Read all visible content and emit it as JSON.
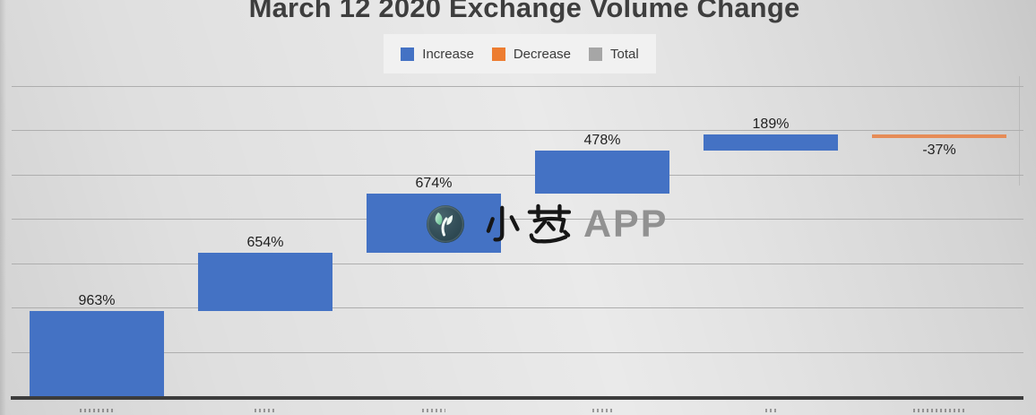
{
  "header": {
    "title": "March 12 2020 Exchange Volume Change"
  },
  "colors": {
    "background": "#dfdfdf",
    "legend_box": "#f1f1f1",
    "gridline": "#aeaeae",
    "axis_line": "#3c3c3c",
    "title_text": "#3e3e3e",
    "data_label_text": "#1f1f1f",
    "increase_blue": "#4472C4",
    "decrease_orange": "#ED7D31",
    "total_gray": "#A6A6A6"
  },
  "watermark": {
    "logo": "sprout-icon",
    "text_cn": "小葱",
    "text_en": "APP"
  },
  "chart_data": {
    "type": "bar",
    "subtype": "waterfall",
    "title": "March 12 2020 Exchange Volume Change",
    "legend_position": "top-center",
    "legend": [
      {
        "label": "Increase",
        "color": "#4472C4"
      },
      {
        "label": "Decrease",
        "color": "#ED7D31"
      },
      {
        "label": "Total",
        "color": "#A6A6A6"
      }
    ],
    "values": [
      963,
      654,
      674,
      478,
      189,
      -37
    ],
    "data_labels": [
      "963%",
      "654%",
      "674%",
      "478%",
      "189%",
      "-37%"
    ],
    "cumulative": [
      963,
      1617,
      2291,
      2769,
      2958,
      2921
    ],
    "categories": [
      "",
      "",
      "",
      "",
      "",
      ""
    ],
    "x_tick_labels_note": "category labels are cut off at the bottom edge of the screenshot; only pixel tops of the letters are visible",
    "xlabel": "",
    "ylabel": "",
    "ylim": [
      0,
      3500
    ],
    "gridline_step_pct": 500,
    "grid": true,
    "y_tick_labels_visible": false,
    "bar_color_increase": "#4472C4",
    "bar_color_decrease": "#E68C57"
  }
}
